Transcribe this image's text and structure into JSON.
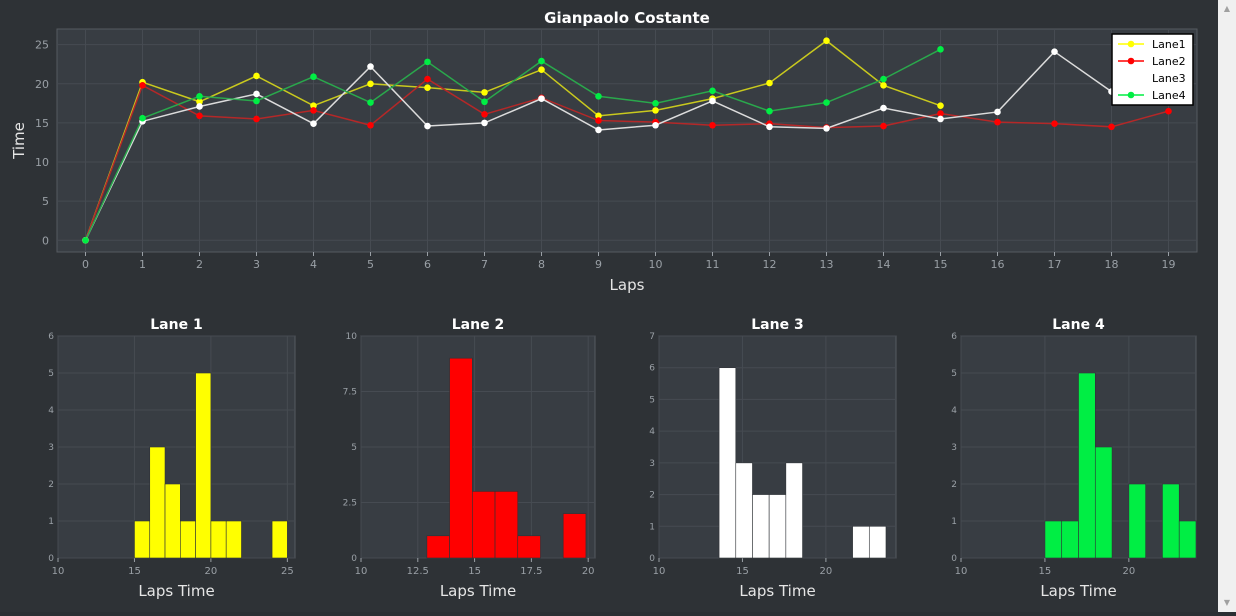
{
  "chart_data": [
    {
      "type": "line",
      "title": "Gianpaolo Costante",
      "xlabel": "Laps",
      "ylabel": "Time",
      "xlim": [
        -0.5,
        19.5
      ],
      "ylim": [
        -1.5,
        27
      ],
      "x_ticks": [
        "0",
        "1",
        "2",
        "3",
        "4",
        "5",
        "6",
        "7",
        "8",
        "9",
        "10",
        "11",
        "12",
        "13",
        "14",
        "15",
        "16",
        "17",
        "18",
        "19"
      ],
      "y_ticks": [
        "0",
        "5",
        "10",
        "15",
        "20",
        "25"
      ],
      "legend_position": "top-right",
      "series": [
        {
          "name": "Lane1",
          "color": "#ffff00",
          "line_color": "#c9c91e",
          "x": [
            0,
            1,
            2,
            3,
            4,
            5,
            6,
            7,
            8,
            9,
            10,
            11,
            12,
            13,
            14,
            15
          ],
          "y": [
            0,
            20.2,
            17.7,
            21,
            17.2,
            20,
            19.5,
            18.9,
            21.8,
            15.9,
            16.6,
            18.1,
            20.1,
            25.5,
            19.8,
            17.2
          ]
        },
        {
          "name": "Lane2",
          "color": "#ff0000",
          "line_color": "#b42828",
          "x": [
            0,
            1,
            2,
            3,
            4,
            5,
            6,
            7,
            8,
            9,
            10,
            11,
            12,
            13,
            14,
            15,
            16,
            17,
            18,
            19
          ],
          "y": [
            0,
            19.8,
            15.9,
            15.5,
            16.6,
            14.7,
            20.6,
            16.1,
            18.2,
            15.3,
            15.1,
            14.7,
            14.9,
            14.4,
            14.6,
            16.2,
            15.1,
            14.9,
            14.5,
            16.5
          ]
        },
        {
          "name": "Lane3",
          "color": "#ffffff",
          "line_color": "#dcdcdc",
          "x": [
            0,
            1,
            2,
            3,
            4,
            5,
            6,
            7,
            8,
            9,
            10,
            11,
            12,
            13,
            14,
            15,
            16,
            17,
            18
          ],
          "y": [
            0,
            15.2,
            17.1,
            18.7,
            14.9,
            22.2,
            14.6,
            15,
            18.1,
            14.1,
            14.7,
            17.8,
            14.5,
            14.3,
            16.9,
            15.5,
            16.4,
            24.1,
            19
          ]
        },
        {
          "name": "Lane4",
          "color": "#00ee44",
          "line_color": "#2aa84c",
          "x": [
            0,
            1,
            2,
            3,
            4,
            5,
            6,
            7,
            8,
            9,
            10,
            11,
            12,
            13,
            14,
            15
          ],
          "y": [
            0,
            15.6,
            18.4,
            17.8,
            20.9,
            17.6,
            22.8,
            17.7,
            22.9,
            18.4,
            17.5,
            19.1,
            16.5,
            17.6,
            20.6,
            24.4
          ]
        }
      ]
    },
    {
      "type": "bar",
      "title": "Lane 1",
      "xlabel": "Laps Time",
      "xlim": [
        10,
        25.5
      ],
      "ylim": [
        0,
        6
      ],
      "x_ticks": [
        "10",
        "15",
        "20",
        "25"
      ],
      "x_tick_values": [
        10,
        15,
        20,
        25
      ],
      "y_ticks": [
        "0",
        "1",
        "2",
        "3",
        "4",
        "5",
        "6"
      ],
      "y_tick_values": [
        0,
        1,
        2,
        3,
        4,
        5,
        6
      ],
      "color": "#ffff00",
      "bin_width": 1,
      "bin_starts": [
        15,
        16,
        17,
        18,
        19,
        20,
        21,
        22,
        23,
        24
      ],
      "values": [
        1,
        3,
        2,
        1,
        5,
        1,
        1,
        0,
        0,
        1
      ]
    },
    {
      "type": "bar",
      "title": "Lane 2",
      "xlabel": "Laps Time",
      "xlim": [
        10,
        20.3
      ],
      "ylim": [
        0,
        10
      ],
      "x_ticks": [
        "10",
        "12.5",
        "15",
        "17.5",
        "20"
      ],
      "x_tick_values": [
        10,
        12.5,
        15,
        17.5,
        20
      ],
      "y_ticks": [
        "0",
        "2.5",
        "5",
        "7.5",
        "10"
      ],
      "y_tick_values": [
        0,
        2.5,
        5,
        7.5,
        10
      ],
      "color": "#ff0000",
      "bin_width": 1,
      "bin_starts": [
        12.9,
        13.9,
        14.9,
        15.9,
        16.9,
        17.9,
        18.9
      ],
      "values": [
        1,
        9,
        3,
        3,
        1,
        0,
        2
      ]
    },
    {
      "type": "bar",
      "title": "Lane 3",
      "xlabel": "Laps Time",
      "xlim": [
        10,
        24.2
      ],
      "ylim": [
        0,
        7
      ],
      "x_ticks": [
        "10",
        "15",
        "20"
      ],
      "x_tick_values": [
        10,
        15,
        20
      ],
      "y_ticks": [
        "0",
        "1",
        "2",
        "3",
        "4",
        "5",
        "6",
        "7"
      ],
      "y_tick_values": [
        0,
        1,
        2,
        3,
        4,
        5,
        6,
        7
      ],
      "color": "#ffffff",
      "bin_width": 1,
      "bin_starts": [
        13.6,
        14.6,
        15.6,
        16.6,
        17.6,
        18.6,
        19.6,
        20.6,
        21.6,
        22.6
      ],
      "values": [
        6,
        3,
        2,
        2,
        3,
        0,
        0,
        0,
        1,
        1
      ]
    },
    {
      "type": "bar",
      "title": "Lane 4",
      "xlabel": "Laps Time",
      "xlim": [
        10,
        24
      ],
      "ylim": [
        0,
        6
      ],
      "x_ticks": [
        "10",
        "15",
        "20"
      ],
      "x_tick_values": [
        10,
        15,
        20
      ],
      "y_ticks": [
        "0",
        "1",
        "2",
        "3",
        "4",
        "5",
        "6"
      ],
      "y_tick_values": [
        0,
        1,
        2,
        3,
        4,
        5,
        6
      ],
      "color": "#00ee44",
      "bin_width": 1,
      "bin_starts": [
        15,
        16,
        17,
        18,
        19,
        20,
        21,
        22,
        23
      ],
      "values": [
        1,
        1,
        5,
        3,
        0,
        2,
        0,
        2,
        1
      ]
    }
  ]
}
